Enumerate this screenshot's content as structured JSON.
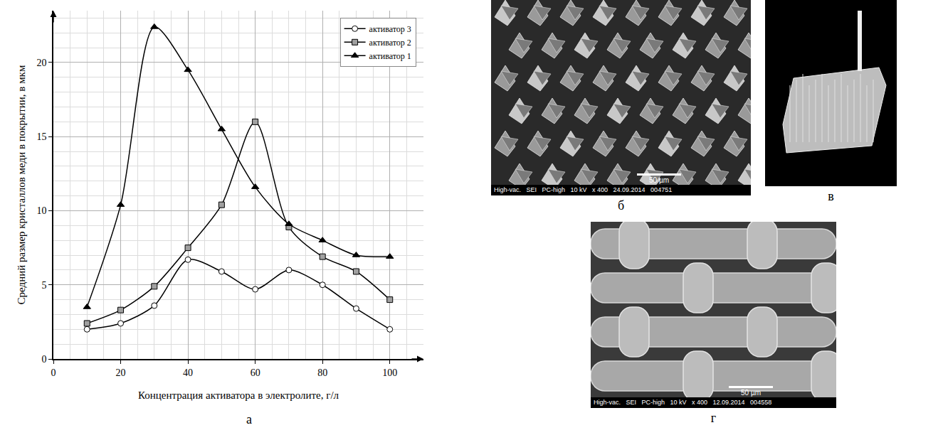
{
  "chart_data": {
    "type": "line",
    "x_label": "Концентрация активатора в электролите, г/л",
    "y_label": "Средний размер кристаллов меди в покрытии, в мкм",
    "panel_letter": "а",
    "x": [
      10,
      20,
      30,
      40,
      50,
      60,
      70,
      80,
      90,
      100
    ],
    "series": [
      {
        "name": "активатор 3",
        "color": "#ffffff",
        "marker": "circle-open",
        "line_style": "smooth",
        "values": [
          2.0,
          2.4,
          3.6,
          6.7,
          5.9,
          4.7,
          6.0,
          5.0,
          3.4,
          2.0
        ]
      },
      {
        "name": "активатор 2",
        "color": "#a0a0a0",
        "marker": "square",
        "line_style": "smooth",
        "values": [
          2.4,
          3.3,
          4.9,
          7.5,
          10.4,
          16.0,
          8.9,
          6.9,
          5.9,
          4.0
        ]
      },
      {
        "name": "активатор 1",
        "color": "#000000",
        "marker": "triangle-up",
        "line_style": "smooth",
        "values": [
          3.5,
          10.4,
          22.4,
          19.5,
          15.5,
          11.6,
          9.1,
          8.0,
          7.0,
          6.9
        ]
      }
    ],
    "xlim": [
      0,
      110
    ],
    "xticks": [
      0,
      20,
      40,
      60,
      80,
      100
    ],
    "ylim": [
      0,
      23.5
    ],
    "yticks": [
      0,
      5,
      10,
      15,
      20
    ],
    "grid": true,
    "legend": "top-right"
  },
  "images": [
    {
      "letter": "б",
      "scale_bar": "50 µm",
      "info": "High-vac.   SEI   PC-high   10 kV   x 400   24.09.2014   004751"
    },
    {
      "letter": "в"
    },
    {
      "letter": "г",
      "scale_bar": "50 µm",
      "info": "High-vac.   SEI   PC-high   10 kV   x 400   12.09.2014   004558"
    }
  ]
}
